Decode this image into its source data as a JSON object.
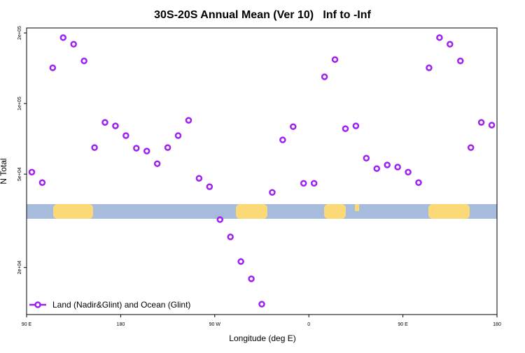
{
  "chart_data": {
    "type": "scatter",
    "title": "30S-20S Annual Mean (Ver 10)   Inf to -Inf",
    "x_label": "Longitude (deg E)",
    "y_label": "N Total",
    "log_y": true,
    "xlim": [
      90,
      540
    ],
    "ylim": [
      12600,
      210000
    ],
    "xticks": [
      {
        "value": 90,
        "label": "90 E"
      },
      180,
      {
        "value": 270,
        "label": "90 W"
      },
      {
        "value": 360,
        "label": "0"
      },
      {
        "value": 450,
        "label": "90 E"
      },
      {
        "value": 540,
        "label": "180"
      }
    ],
    "yticks": [
      {
        "value": 20000,
        "label": "2e+04"
      },
      {
        "value": 50000,
        "label": "5e+04"
      },
      {
        "value": 100000,
        "label": "1e+05"
      },
      {
        "value": 200000,
        "label": "2e+05"
      }
    ],
    "legend": "bottom-left",
    "series": [
      {
        "name": "Land (Nadir&Glint) and Ocean (Glint)",
        "color": "#a020f0",
        "x": [
          95,
          105,
          115,
          125,
          135,
          145,
          155,
          165,
          175,
          185,
          195,
          205,
          215,
          225,
          235,
          245,
          255,
          265,
          275,
          285,
          295,
          305,
          315,
          325,
          335,
          345,
          355,
          365,
          375,
          385,
          395,
          405,
          415,
          425,
          435,
          445,
          455,
          465,
          475,
          485,
          495,
          505,
          515,
          525,
          535
        ],
        "values": [
          51000,
          46000,
          142000,
          191000,
          179000,
          152000,
          64900,
          83100,
          80300,
          73000,
          64500,
          62700,
          55400,
          64900,
          73000,
          84800,
          48000,
          44200,
          32000,
          27000,
          21200,
          17900,
          13950,
          41800,
          70000,
          79700,
          45700,
          45700,
          130000,
          154000,
          78100,
          80300,
          58500,
          52800,
          54700,
          53600,
          51000,
          46000,
          142000,
          191000,
          179000,
          152000,
          64900,
          83100,
          80900
        ]
      }
    ]
  }
}
